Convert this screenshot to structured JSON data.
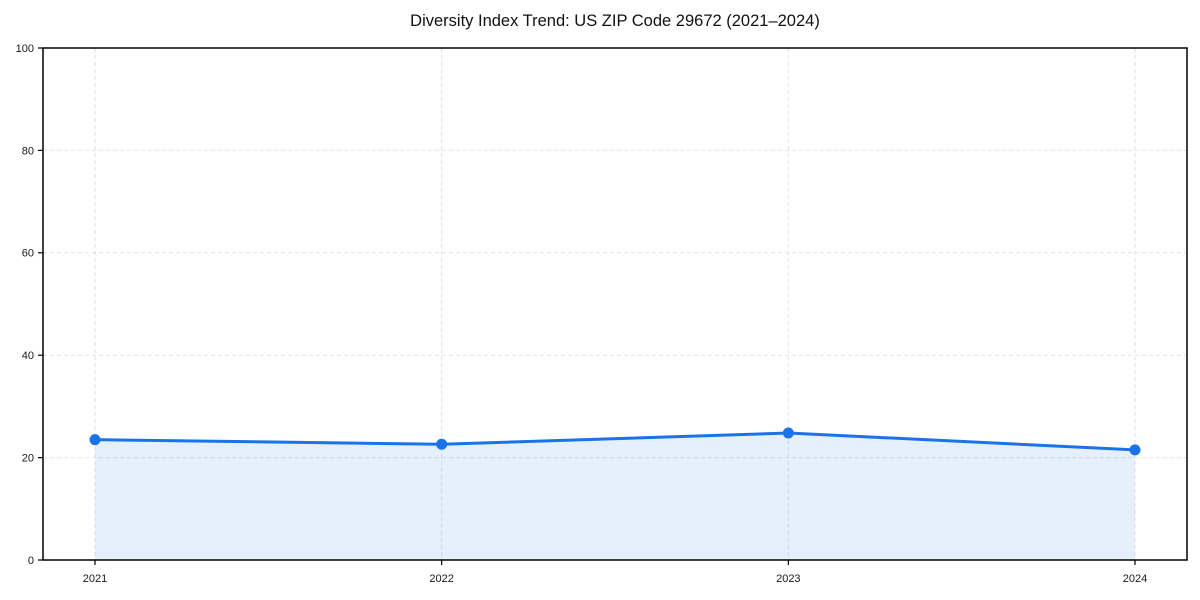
{
  "chart_data": {
    "type": "area",
    "title": "Diversity Index Trend: US ZIP Code 29672 (2021–2024)",
    "categories": [
      "2021",
      "2022",
      "2023",
      "2024"
    ],
    "series": [
      {
        "name": "Diversity Index",
        "values": [
          23.5,
          22.6,
          24.8,
          21.5
        ]
      }
    ],
    "ylim": [
      0,
      100
    ],
    "yticks": [
      0,
      20,
      40,
      60,
      80,
      100
    ],
    "grid": true,
    "legend_position": "none",
    "colors": {
      "line": "#1a73e8",
      "marker": "#1a73e8",
      "area_fill": "rgba(26,115,232,0.11)",
      "grid": "#e2e2e2",
      "axis": "#000000",
      "text": "#1a1a1a"
    }
  }
}
